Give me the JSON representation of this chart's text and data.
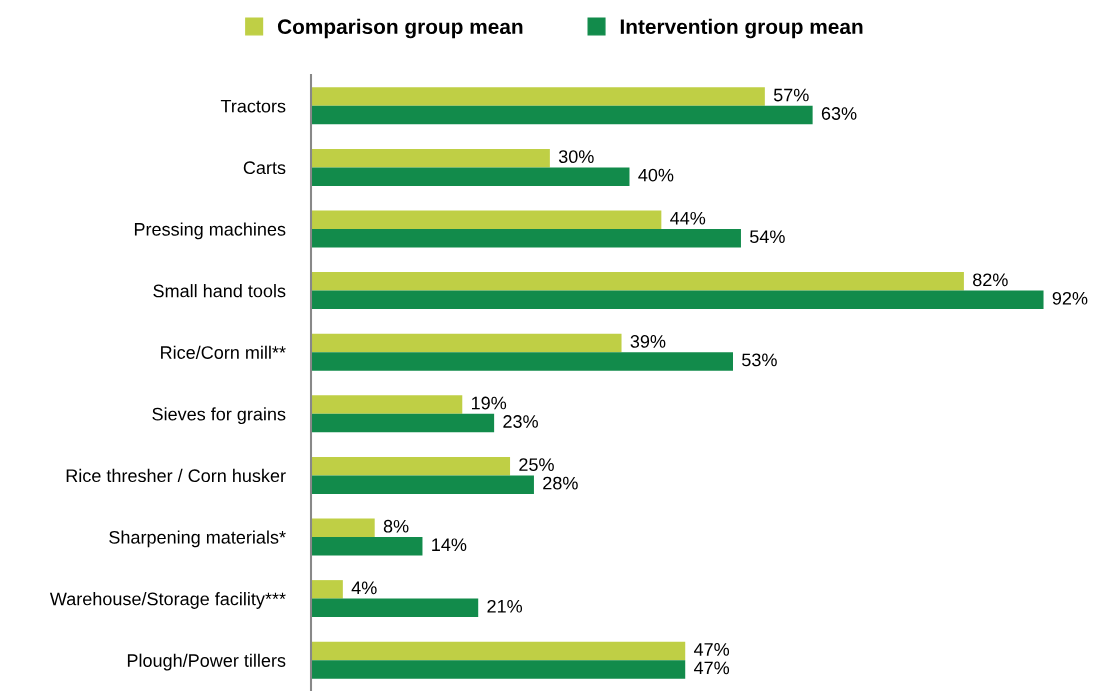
{
  "chart_data": {
    "type": "bar",
    "orientation": "horizontal",
    "categories": [
      "Tractors",
      "Carts",
      "Pressing machines",
      "Small hand tools",
      "Rice/Corn mill**",
      "Sieves for grains",
      "Rice thresher / Corn husker",
      "Sharpening materials*",
      "Warehouse/Storage facility***",
      "Plough/Power tillers"
    ],
    "series": [
      {
        "name": "Comparison group mean",
        "color": "#bfcf45",
        "values": [
          57,
          30,
          44,
          82,
          39,
          19,
          25,
          8,
          4,
          47
        ],
        "value_labels": [
          "57%",
          "30%",
          "44%",
          "82%",
          "39%",
          "19%",
          "25%",
          "8%",
          "4%",
          "47%"
        ]
      },
      {
        "name": "Intervention group mean",
        "color": "#128b4b",
        "values": [
          63,
          40,
          54,
          92,
          53,
          23,
          28,
          14,
          21,
          47
        ],
        "value_labels": [
          "63%",
          "40%",
          "54%",
          "92%",
          "53%",
          "23%",
          "28%",
          "14%",
          "21%",
          "47%"
        ]
      }
    ],
    "tick_labels": "y",
    "legend": "top",
    "grid": false
  }
}
